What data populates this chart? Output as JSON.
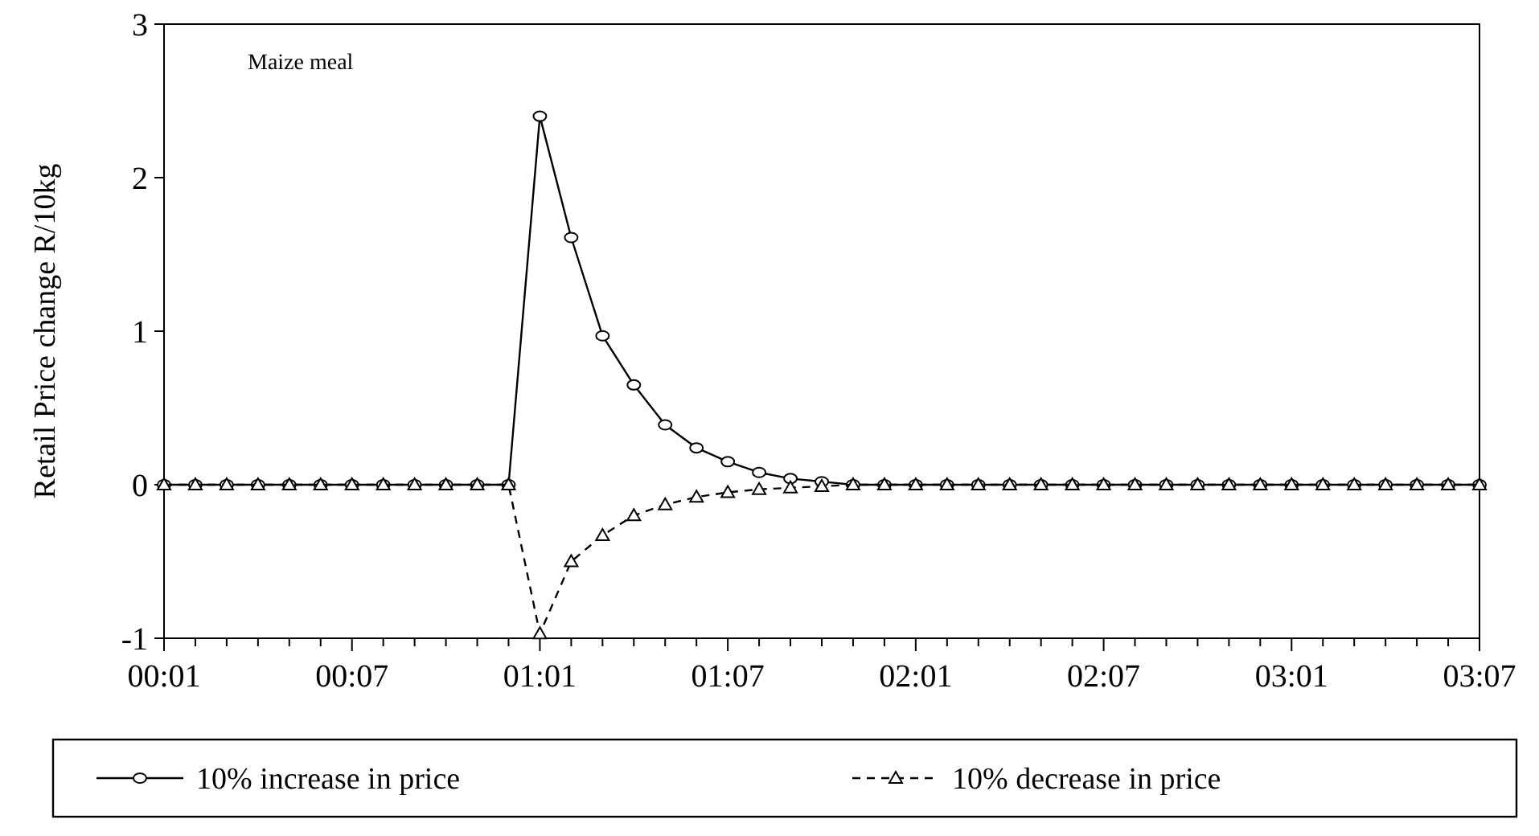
{
  "chart_data": {
    "type": "line",
    "ylabel": "Retail Price change R/10kg",
    "annotations": [
      "Maize meal"
    ],
    "categories": [
      "00:01",
      null,
      null,
      null,
      null,
      null,
      "00:07",
      null,
      null,
      null,
      null,
      null,
      "01:01",
      null,
      null,
      null,
      null,
      null,
      "01:07",
      null,
      null,
      null,
      null,
      null,
      "02:01",
      null,
      null,
      null,
      null,
      null,
      "02:07",
      null,
      null,
      null,
      null,
      null,
      "03:01",
      null,
      null,
      null,
      null,
      null,
      "03:07"
    ],
    "ylim": [
      -1,
      3
    ],
    "yticks": [
      -1,
      0,
      1,
      2,
      3
    ],
    "grid": false,
    "legend": "bottom",
    "series": [
      {
        "name": "10% increase in price",
        "color": "#000000",
        "marker": "circle",
        "line_style": "solid",
        "values": [
          0,
          0,
          0,
          0,
          0,
          0,
          0,
          0,
          0,
          0,
          0,
          0,
          2.4,
          1.61,
          0.97,
          0.65,
          0.39,
          0.24,
          0.15,
          0.08,
          0.04,
          0.02,
          0,
          0,
          0,
          0,
          0,
          0,
          0,
          0,
          0,
          0,
          0,
          0,
          0,
          0,
          0,
          0,
          0,
          0,
          0,
          0,
          0
        ]
      },
      {
        "name": "10% decrease in price",
        "color": "#000000",
        "marker": "triangle",
        "line_style": "dashed",
        "values": [
          0,
          0,
          0,
          0,
          0,
          0,
          0,
          0,
          0,
          0,
          0,
          0,
          -0.97,
          -0.5,
          -0.33,
          -0.2,
          -0.13,
          -0.08,
          -0.05,
          -0.03,
          -0.02,
          -0.01,
          0,
          0,
          0,
          0,
          0,
          0,
          0,
          0,
          0,
          0,
          0,
          0,
          0,
          0,
          0,
          0,
          0,
          0,
          0,
          0,
          0
        ]
      }
    ]
  }
}
